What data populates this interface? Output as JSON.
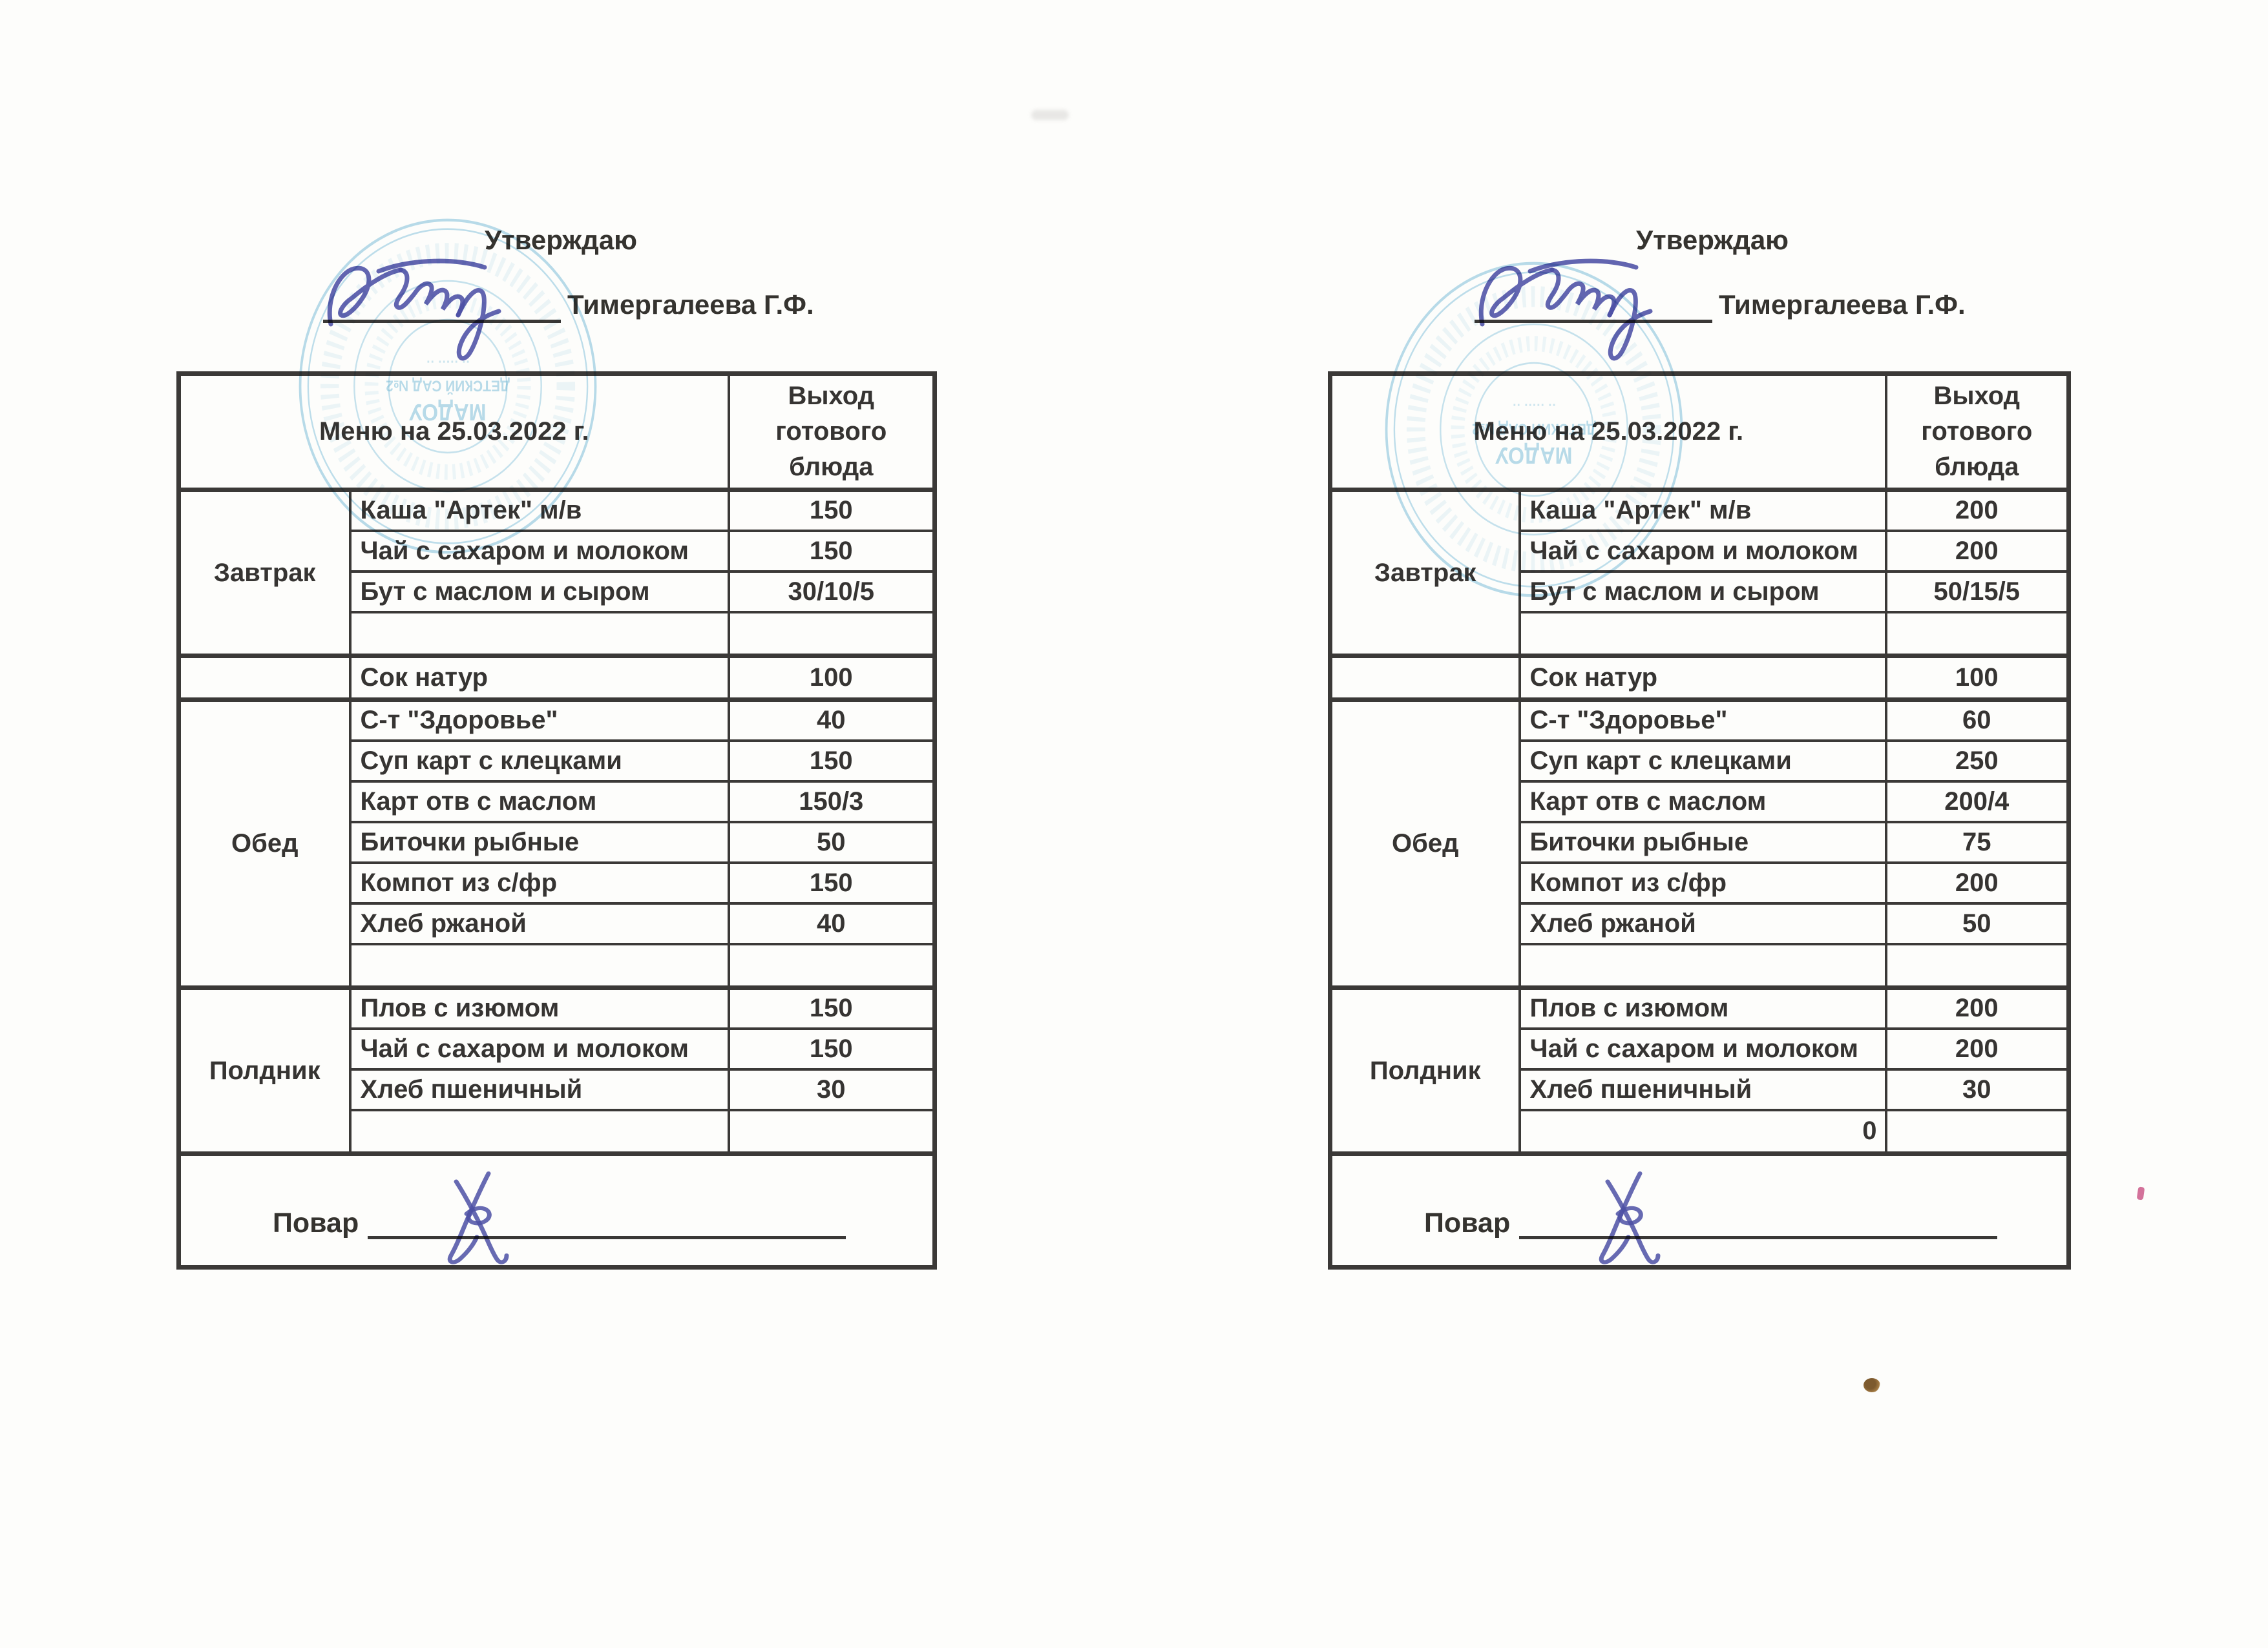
{
  "docs": [
    {
      "approve_label": "Утверждаю",
      "approver_name": "Тимергалеева Г.Ф.",
      "stamp": {
        "color": "#62b2d4",
        "center_line_1": "МАДОУ",
        "center_line_2": "ДЕТСКИЙ САД №2"
      },
      "table": {
        "title": "Меню на 25.03.2022 г.",
        "output_header": "Выход готового блюда",
        "cook_label": "Повар",
        "sections": [
          {
            "name": "Завтрак",
            "key": "breakfast",
            "rows": [
              {
                "dish": "Каша \"Артек\" м/в",
                "out": "150"
              },
              {
                "dish": "Чай с сахаром и молоком",
                "out": "150"
              },
              {
                "dish": "Бут с маслом и сыром",
                "out": "30/10/5"
              },
              {
                "dish": "",
                "out": "",
                "tall": true
              }
            ]
          },
          {
            "name": "",
            "key": "juice",
            "rows": [
              {
                "dish": "Сок натур",
                "out": "100",
                "tall": true
              }
            ]
          },
          {
            "name": "Обед",
            "key": "lunch",
            "rows": [
              {
                "dish": "С-т \"Здоровье\"",
                "out": "40"
              },
              {
                "dish": "Суп карт с клецками",
                "out": "150"
              },
              {
                "dish": "Карт отв с маслом",
                "out": "150/3"
              },
              {
                "dish": "Биточки рыбные",
                "out": "50"
              },
              {
                "dish": "Компот из с/фр",
                "out": "150"
              },
              {
                "dish": "Хлеб ржаной",
                "out": "40"
              },
              {
                "dish": "",
                "out": "",
                "tall": true
              }
            ]
          },
          {
            "name": "Полдник",
            "key": "snack",
            "rows": [
              {
                "dish": "Плов с изюмом",
                "out": "150"
              },
              {
                "dish": "Чай с сахаром и молоком",
                "out": "150"
              },
              {
                "dish": "Хлеб пшеничный",
                "out": "30"
              },
              {
                "dish": "",
                "out": "",
                "tall": true
              }
            ]
          }
        ]
      }
    },
    {
      "approve_label": "Утверждаю",
      "approver_name": "Тимергалеева Г.Ф.",
      "stamp": {
        "color": "#62b2d4",
        "center_line_1": "МАДОУ",
        "center_line_2": "ДЕТСКИЙ САД №2"
      },
      "table": {
        "title": "Меню на 25.03.2022 г.",
        "output_header": "Выход готового блюда",
        "cook_label": "Повар",
        "sections": [
          {
            "name": "Завтрак",
            "key": "breakfast",
            "rows": [
              {
                "dish": "Каша \"Артек\" м/в",
                "out": "200"
              },
              {
                "dish": "Чай с сахаром и молоком",
                "out": "200"
              },
              {
                "dish": "Бут с маслом и сыром",
                "out": "50/15/5"
              },
              {
                "dish": "",
                "out": "",
                "tall": true
              }
            ]
          },
          {
            "name": "",
            "key": "juice",
            "rows": [
              {
                "dish": "Сок натур",
                "out": "100",
                "tall": true
              }
            ]
          },
          {
            "name": "Обед",
            "key": "lunch",
            "rows": [
              {
                "dish": "С-т \"Здоровье\"",
                "out": "60"
              },
              {
                "dish": "Суп карт с клецками",
                "out": "250"
              },
              {
                "dish": "Карт отв с маслом",
                "out": "200/4"
              },
              {
                "dish": "Биточки рыбные",
                "out": "75"
              },
              {
                "dish": "Компот из с/фр",
                "out": "200"
              },
              {
                "dish": "Хлеб ржаной",
                "out": "50"
              },
              {
                "dish": "",
                "out": "",
                "tall": true
              }
            ]
          },
          {
            "name": "Полдник",
            "key": "snack",
            "rows": [
              {
                "dish": "Плов с изюмом",
                "out": "200"
              },
              {
                "dish": "Чай с сахаром и молоком",
                "out": "200"
              },
              {
                "dish": "Хлеб пшеничный",
                "out": "30"
              },
              {
                "dish": "0",
                "out": "",
                "tall": true,
                "align": "right"
              }
            ]
          }
        ]
      }
    }
  ]
}
